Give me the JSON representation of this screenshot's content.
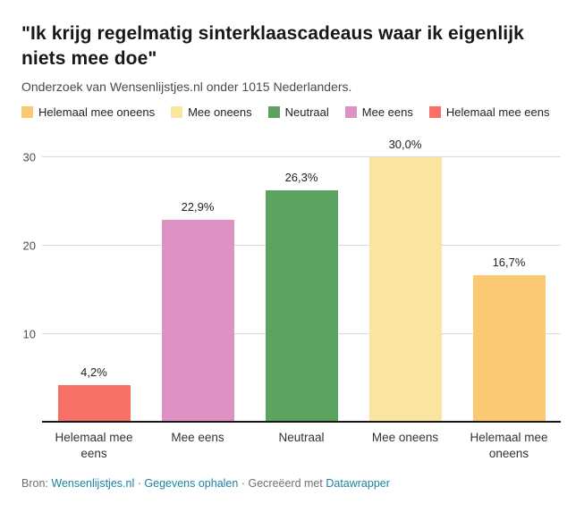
{
  "header": {
    "title": "\"Ik krijg regelmatig sinterklaascadeaus waar ik eigenlijk niets mee doe\"",
    "subtitle": "Onderzoek van Wensenlijstjes.nl onder 1015 Nederlanders."
  },
  "legend": {
    "items": [
      {
        "label": "Helemaal mee oneens",
        "color": "#fbc873"
      },
      {
        "label": "Mee oneens",
        "color": "#f9e5a0"
      },
      {
        "label": "Neutraal",
        "color": "#5ba35f"
      },
      {
        "label": "Mee eens",
        "color": "#dd92c3"
      },
      {
        "label": "Helemaal mee eens",
        "color": "#f76f65"
      }
    ]
  },
  "chart_data": {
    "type": "bar",
    "title": "\"Ik krijg regelmatig sinterklaascadeaus waar ik eigenlijk niets mee doe\"",
    "subtitle": "Onderzoek van Wensenlijstjes.nl onder 1015 Nederlanders.",
    "categories": [
      "Helemaal mee eens",
      "Mee eens",
      "Neutraal",
      "Mee oneens",
      "Helemaal mee oneens"
    ],
    "values": [
      4.2,
      22.9,
      26.3,
      30.0,
      16.7
    ],
    "value_labels": [
      "4,2%",
      "22,9%",
      "26,3%",
      "30,0%",
      "16,7%"
    ],
    "colors": [
      "#f76f65",
      "#dd92c3",
      "#5ba35f",
      "#f9e5a0",
      "#fbc873"
    ],
    "unit": "%",
    "ylim": [
      0,
      30
    ],
    "yticks": [
      10,
      20,
      30
    ],
    "ytick_labels": [
      "10",
      "20",
      "30"
    ],
    "grid": "horizontal",
    "legend_position": "top"
  },
  "footer": {
    "bron_label": "Bron:",
    "source_link": "Wensenlijstjes.nl",
    "separator1": "·",
    "data_link": "Gegevens ophalen",
    "separator2": "·",
    "created_with": "Gecreëerd met",
    "tool_link": "Datawrapper"
  }
}
